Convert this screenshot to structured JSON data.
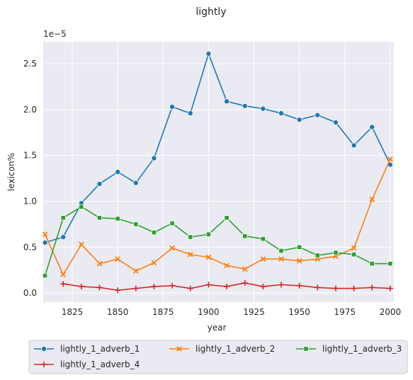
{
  "chart_data": {
    "type": "line",
    "title": "lightly",
    "xlabel": "year",
    "ylabel": "lexicon%",
    "y_scale_label": "1e−5",
    "xlim": [
      1809,
      2002
    ],
    "ylim": [
      -0.1,
      2.74
    ],
    "xticks": [
      1825,
      1850,
      1875,
      1900,
      1925,
      1950,
      1975,
      2000
    ],
    "yticks": [
      0.0,
      0.5,
      1.0,
      1.5,
      2.0,
      2.5
    ],
    "ytick_labels": [
      "0.0",
      "0.5",
      "1.0",
      "1.5",
      "2.0",
      "2.5"
    ],
    "grid": true,
    "legend_position": "bottom",
    "series": [
      {
        "name": "lightly_1_adverb_1",
        "color": "#1f77b4",
        "marker": "circle",
        "x": [
          1810,
          1820,
          1830,
          1840,
          1850,
          1860,
          1870,
          1880,
          1890,
          1900,
          1910,
          1920,
          1930,
          1940,
          1950,
          1960,
          1970,
          1980,
          1990,
          2000
        ],
        "y": [
          0.55,
          0.61,
          0.98,
          1.19,
          1.32,
          1.2,
          1.47,
          2.03,
          1.96,
          2.61,
          2.09,
          2.04,
          2.01,
          1.96,
          1.89,
          1.94,
          1.86,
          1.61,
          1.81,
          1.4
        ]
      },
      {
        "name": "lightly_1_adverb_2",
        "color": "#ff7f0e",
        "marker": "x",
        "x": [
          1810,
          1820,
          1830,
          1840,
          1850,
          1860,
          1870,
          1880,
          1890,
          1900,
          1910,
          1920,
          1930,
          1940,
          1950,
          1960,
          1970,
          1980,
          1990,
          2000
        ],
        "y": [
          0.64,
          0.2,
          0.53,
          0.32,
          0.37,
          0.24,
          0.33,
          0.49,
          0.42,
          0.39,
          0.3,
          0.26,
          0.37,
          0.37,
          0.35,
          0.37,
          0.4,
          0.49,
          1.02,
          1.46
        ]
      },
      {
        "name": "lightly_1_adverb_3",
        "color": "#2ca02c",
        "marker": "square",
        "x": [
          1810,
          1820,
          1830,
          1840,
          1850,
          1860,
          1870,
          1880,
          1890,
          1900,
          1910,
          1920,
          1930,
          1940,
          1950,
          1960,
          1970,
          1980,
          1990,
          2000
        ],
        "y": [
          0.19,
          0.82,
          0.94,
          0.82,
          0.81,
          0.75,
          0.66,
          0.76,
          0.61,
          0.64,
          0.82,
          0.62,
          0.59,
          0.46,
          0.5,
          0.41,
          0.44,
          0.42,
          0.32,
          0.32
        ]
      },
      {
        "name": "lightly_1_adverb_4",
        "color": "#d62728",
        "marker": "plus",
        "x": [
          1820,
          1830,
          1840,
          1850,
          1860,
          1870,
          1880,
          1890,
          1900,
          1910,
          1920,
          1930,
          1940,
          1950,
          1960,
          1970,
          1980,
          1990,
          2000
        ],
        "y": [
          0.1,
          0.07,
          0.06,
          0.03,
          0.05,
          0.07,
          0.08,
          0.05,
          0.09,
          0.07,
          0.11,
          0.07,
          0.09,
          0.08,
          0.06,
          0.05,
          0.05,
          0.06,
          0.05
        ]
      }
    ]
  }
}
